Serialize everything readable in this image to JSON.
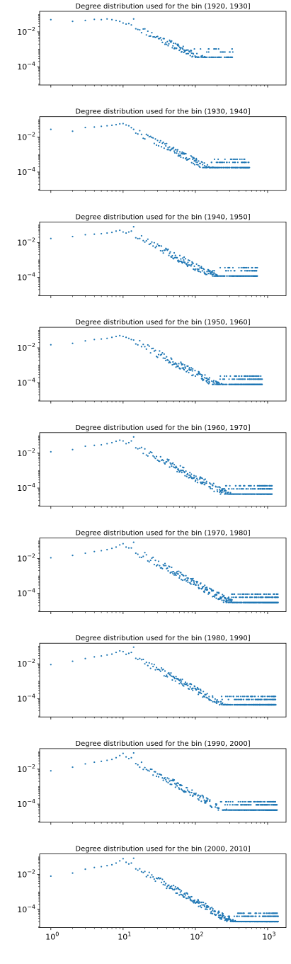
{
  "chart_data": {
    "type": "scatter",
    "layout": "stacked-subplots",
    "scale": {
      "x": "log",
      "y": "log"
    },
    "xlim": [
      0.7,
      1800
    ],
    "ylim": [
      9e-06,
      0.15
    ],
    "x_ticks": [
      1,
      10,
      100,
      1000
    ],
    "x_tick_labels": [
      {
        "base": "10",
        "exp": "0"
      },
      {
        "base": "10",
        "exp": "1"
      },
      {
        "base": "10",
        "exp": "2"
      },
      {
        "base": "10",
        "exp": "3"
      }
    ],
    "y_ticks": [
      0.01,
      0.0001
    ],
    "y_tick_labels": [
      {
        "base": "10",
        "exp": "−2"
      },
      {
        "base": "10",
        "exp": "−4"
      }
    ],
    "marker_color": "#1f77b4",
    "grid": false,
    "subplots": [
      {
        "title": "Degree distribution used for the bin (1920, 1930]",
        "head": [
          [
            1,
            0.05
          ],
          [
            2,
            0.04
          ],
          [
            3,
            0.045
          ],
          [
            4,
            0.052
          ],
          [
            5,
            0.05
          ],
          [
            6,
            0.055
          ],
          [
            7,
            0.05
          ],
          [
            8,
            0.045
          ],
          [
            9,
            0.04
          ],
          [
            10,
            0.032
          ],
          [
            11,
            0.028
          ],
          [
            12,
            0.03
          ],
          [
            13,
            0.025
          ],
          [
            14,
            0.055
          ]
        ],
        "tail": {
          "x_max": 330,
          "slope": 2.0,
          "k0": 14,
          "y_k0": 0.022,
          "floor": 0.00035,
          "noise": 0.2,
          "seed": 11
        }
      },
      {
        "title": "Degree distribution used for the bin (1930, 1940]",
        "head": [
          [
            1,
            0.028
          ],
          [
            2,
            0.022
          ],
          [
            3,
            0.036
          ],
          [
            4,
            0.038
          ],
          [
            5,
            0.042
          ],
          [
            6,
            0.045
          ],
          [
            7,
            0.048
          ],
          [
            8,
            0.052
          ],
          [
            9,
            0.058
          ],
          [
            10,
            0.06
          ],
          [
            11,
            0.05
          ],
          [
            12,
            0.045
          ],
          [
            13,
            0.035
          ],
          [
            14,
            0.028
          ]
        ],
        "tail": {
          "x_max": 560,
          "slope": 2.1,
          "k0": 14,
          "y_k0": 0.025,
          "floor": 0.00018,
          "noise": 0.2,
          "seed": 22
        }
      },
      {
        "title": "Degree distribution used for the bin (1940, 1950]",
        "head": [
          [
            1,
            0.017
          ],
          [
            2,
            0.022
          ],
          [
            3,
            0.028
          ],
          [
            4,
            0.03
          ],
          [
            5,
            0.032
          ],
          [
            6,
            0.035
          ],
          [
            7,
            0.038
          ],
          [
            8,
            0.045
          ],
          [
            9,
            0.05
          ],
          [
            10,
            0.04
          ],
          [
            11,
            0.035
          ],
          [
            12,
            0.04
          ],
          [
            13,
            0.045
          ],
          [
            14,
            0.08
          ]
        ],
        "tail": {
          "x_max": 720,
          "slope": 2.15,
          "k0": 14,
          "y_k0": 0.028,
          "floor": 0.00012,
          "noise": 0.22,
          "seed": 33
        }
      },
      {
        "title": "Degree distribution used for the bin (1950, 1960]",
        "head": [
          [
            1,
            0.015
          ],
          [
            2,
            0.018
          ],
          [
            3,
            0.025
          ],
          [
            4,
            0.03
          ],
          [
            5,
            0.032
          ],
          [
            6,
            0.035
          ],
          [
            7,
            0.04
          ],
          [
            8,
            0.045
          ],
          [
            9,
            0.05
          ],
          [
            10,
            0.045
          ],
          [
            11,
            0.04
          ],
          [
            12,
            0.035
          ],
          [
            13,
            0.03
          ],
          [
            14,
            0.028
          ]
        ],
        "tail": {
          "x_max": 840,
          "slope": 2.2,
          "k0": 14,
          "y_k0": 0.025,
          "floor": 8e-05,
          "noise": 0.22,
          "seed": 44
        }
      },
      {
        "title": "Degree distribution used for the bin (1960, 1970]",
        "head": [
          [
            1,
            0.012
          ],
          [
            2,
            0.016
          ],
          [
            3,
            0.025
          ],
          [
            4,
            0.028
          ],
          [
            5,
            0.03
          ],
          [
            6,
            0.035
          ],
          [
            7,
            0.04
          ],
          [
            8,
            0.048
          ],
          [
            9,
            0.055
          ],
          [
            10,
            0.05
          ],
          [
            11,
            0.035
          ],
          [
            12,
            0.04
          ],
          [
            13,
            0.05
          ],
          [
            14,
            0.085
          ]
        ],
        "tail": {
          "x_max": 1150,
          "slope": 2.2,
          "k0": 14,
          "y_k0": 0.03,
          "floor": 4.5e-05,
          "noise": 0.22,
          "seed": 55
        }
      },
      {
        "title": "Degree distribution used for the bin (1970, 1980]",
        "head": [
          [
            1,
            0.011
          ],
          [
            2,
            0.015
          ],
          [
            3,
            0.02
          ],
          [
            4,
            0.025
          ],
          [
            5,
            0.028
          ],
          [
            6,
            0.032
          ],
          [
            7,
            0.038
          ],
          [
            8,
            0.045
          ],
          [
            9,
            0.06
          ],
          [
            10,
            0.07
          ],
          [
            11,
            0.045
          ],
          [
            12,
            0.04
          ],
          [
            13,
            0.04
          ],
          [
            14,
            0.085
          ]
        ],
        "tail": {
          "x_max": 1400,
          "slope": 2.25,
          "k0": 14,
          "y_k0": 0.03,
          "floor": 3e-05,
          "noise": 0.22,
          "seed": 66
        }
      },
      {
        "title": "Degree distribution used for the bin (1980, 1990]",
        "head": [
          [
            1,
            0.009
          ],
          [
            2,
            0.014
          ],
          [
            3,
            0.02
          ],
          [
            4,
            0.025
          ],
          [
            5,
            0.028
          ],
          [
            6,
            0.032
          ],
          [
            7,
            0.036
          ],
          [
            8,
            0.045
          ],
          [
            9,
            0.055
          ],
          [
            10,
            0.05
          ],
          [
            11,
            0.035
          ],
          [
            12,
            0.04
          ],
          [
            13,
            0.045
          ],
          [
            14,
            0.09
          ]
        ],
        "tail": {
          "x_max": 1300,
          "slope": 2.3,
          "k0": 14,
          "y_k0": 0.03,
          "floor": 4.5e-05,
          "noise": 0.2,
          "seed": 77
        }
      },
      {
        "title": "Degree distribution used for the bin (1990, 2000]",
        "head": [
          [
            1,
            0.008
          ],
          [
            2,
            0.013
          ],
          [
            3,
            0.02
          ],
          [
            4,
            0.025
          ],
          [
            5,
            0.028
          ],
          [
            6,
            0.032
          ],
          [
            7,
            0.036
          ],
          [
            8,
            0.045
          ],
          [
            9,
            0.06
          ],
          [
            10,
            0.08
          ],
          [
            11,
            0.05
          ],
          [
            12,
            0.04
          ],
          [
            13,
            0.045
          ],
          [
            14,
            0.085
          ]
        ],
        "tail": {
          "x_max": 1350,
          "slope": 2.3,
          "k0": 14,
          "y_k0": 0.03,
          "floor": 4.5e-05,
          "noise": 0.2,
          "seed": 88
        }
      },
      {
        "title": "Degree distribution used for the bin (2000, 2010]",
        "head": [
          [
            1,
            0.008
          ],
          [
            2,
            0.012
          ],
          [
            3,
            0.02
          ],
          [
            4,
            0.025
          ],
          [
            5,
            0.028
          ],
          [
            6,
            0.032
          ],
          [
            7,
            0.036
          ],
          [
            8,
            0.045
          ],
          [
            9,
            0.06
          ],
          [
            10,
            0.08
          ],
          [
            11,
            0.05
          ],
          [
            12,
            0.04
          ],
          [
            13,
            0.045
          ],
          [
            14,
            0.085
          ]
        ],
        "tail": {
          "x_max": 1400,
          "slope": 2.35,
          "k0": 14,
          "y_k0": 0.03,
          "floor": 2e-05,
          "noise": 0.2,
          "seed": 99
        }
      }
    ]
  }
}
